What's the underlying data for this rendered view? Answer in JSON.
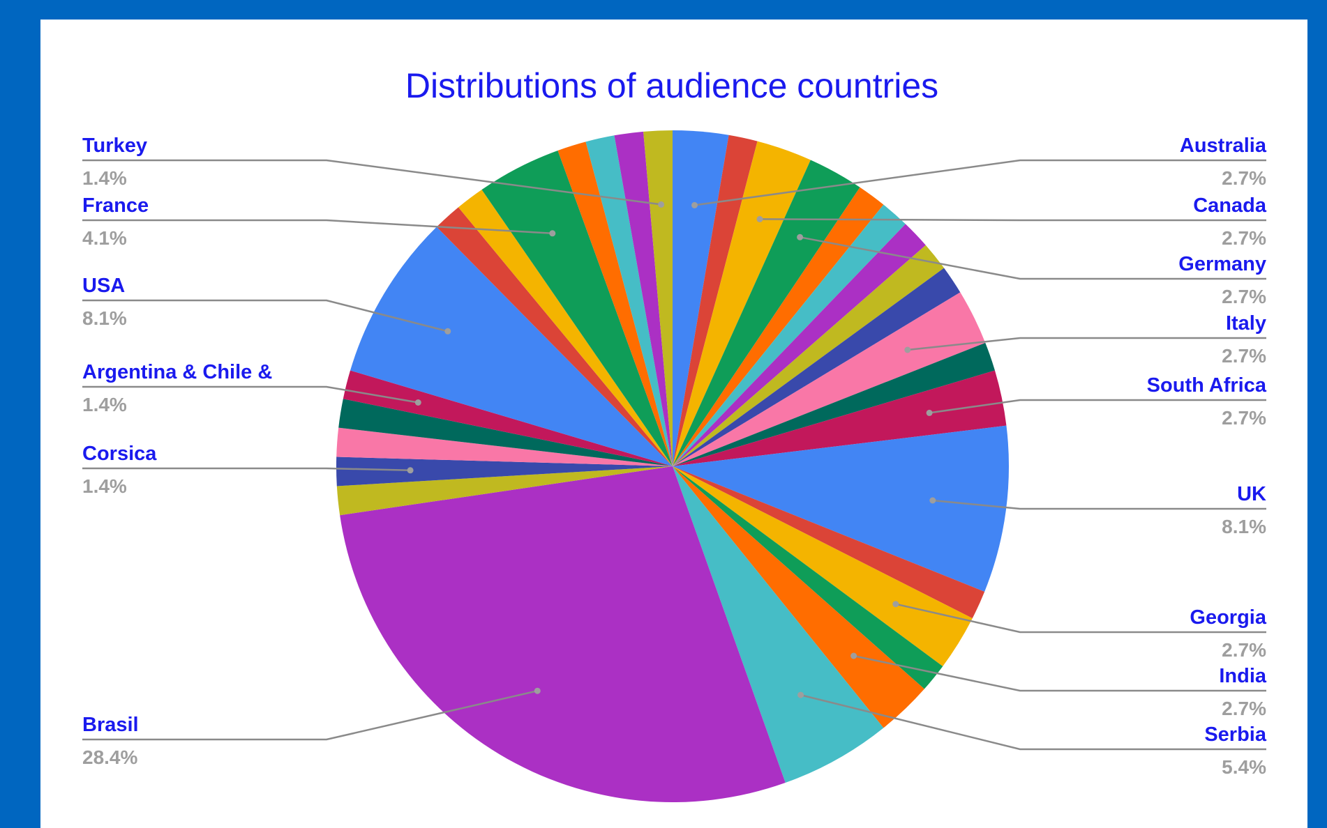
{
  "background_color": "#0066C0",
  "card_color": "#FFFFFF",
  "chart_data": {
    "type": "pie",
    "title": "Distributions of audience countries",
    "start_angle_deg": 0,
    "direction": "clockwise",
    "slices": [
      {
        "name": "Australia",
        "value": 2.7,
        "color": "#4285F4",
        "label": "2.7%",
        "label_side": "right"
      },
      {
        "value": 1.4,
        "color": "#DB4437"
      },
      {
        "name": "Canada",
        "value": 2.7,
        "color": "#F4B400",
        "label": "2.7%",
        "label_side": "right"
      },
      {
        "name": "Germany",
        "value": 2.7,
        "color": "#0F9D58",
        "label": "2.7%",
        "label_side": "right"
      },
      {
        "value": 1.4,
        "color": "#FF6D00"
      },
      {
        "value": 1.4,
        "color": "#46BDC6"
      },
      {
        "value": 1.4,
        "color": "#AB30C4"
      },
      {
        "value": 1.4,
        "color": "#C0B920"
      },
      {
        "value": 1.4,
        "color": "#3949AB"
      },
      {
        "name": "Italy",
        "value": 2.7,
        "color": "#F977A7",
        "label": "2.7%",
        "label_side": "right"
      },
      {
        "value": 1.4,
        "color": "#00695C"
      },
      {
        "name": "South Africa",
        "value": 2.7,
        "color": "#C2185B",
        "label": "2.7%",
        "label_side": "right"
      },
      {
        "name": "UK",
        "value": 8.1,
        "color": "#4285F4",
        "label": "8.1%",
        "label_side": "right"
      },
      {
        "value": 1.4,
        "color": "#DB4437"
      },
      {
        "name": "Georgia",
        "value": 2.7,
        "color": "#F4B400",
        "label": "2.7%",
        "label_side": "right"
      },
      {
        "value": 1.4,
        "color": "#0F9D58"
      },
      {
        "name": "India",
        "value": 2.7,
        "color": "#FF6D00",
        "label": "2.7%",
        "label_side": "right"
      },
      {
        "name": "Serbia",
        "value": 5.4,
        "color": "#46BDC6",
        "label": "5.4%",
        "label_side": "right"
      },
      {
        "name": "Brasil",
        "value": 28.4,
        "color": "#AB30C4",
        "label": "28.4%",
        "label_side": "left"
      },
      {
        "value": 1.4,
        "color": "#C0B920"
      },
      {
        "name": "Corsica",
        "value": 1.4,
        "color": "#3949AB",
        "label": "1.4%",
        "label_side": "left"
      },
      {
        "value": 1.4,
        "color": "#F977A7"
      },
      {
        "value": 1.4,
        "color": "#00695C"
      },
      {
        "name": "Argentina & Chile &",
        "value": 1.4,
        "color": "#C2185B",
        "label": "1.4%",
        "label_side": "left"
      },
      {
        "name": "USA",
        "value": 8.1,
        "color": "#4285F4",
        "label": "8.1%",
        "label_side": "left"
      },
      {
        "value": 1.4,
        "color": "#DB4437"
      },
      {
        "value": 1.4,
        "color": "#F4B400"
      },
      {
        "name": "France",
        "value": 4.1,
        "color": "#0F9D58",
        "label": "4.1%",
        "label_side": "left"
      },
      {
        "value": 1.4,
        "color": "#FF6D00"
      },
      {
        "value": 1.4,
        "color": "#46BDC6"
      },
      {
        "value": 1.4,
        "color": "#AB30C4"
      },
      {
        "name": "Turkey",
        "value": 1.4,
        "color": "#C0B920",
        "label": "1.4%",
        "label_side": "left"
      }
    ]
  }
}
